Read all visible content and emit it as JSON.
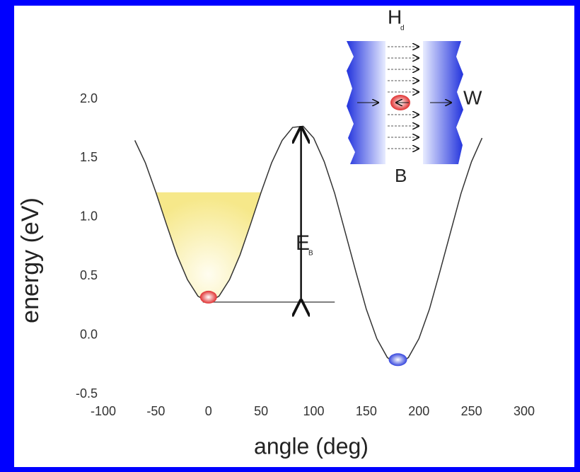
{
  "chart_data": {
    "type": "line",
    "xlabel": "angle (deg)",
    "ylabel": "energy (eV)",
    "x": [
      -70,
      -60,
      -50,
      -40,
      -30,
      -20,
      -10,
      0,
      10,
      20,
      30,
      40,
      50,
      60,
      70,
      80,
      90,
      100,
      110,
      120,
      130,
      140,
      150,
      160,
      170,
      180,
      190,
      200,
      210,
      220,
      230,
      240,
      250,
      260
    ],
    "series": [
      {
        "color": "#333333",
        "values": [
          1.65,
          1.46,
          1.21,
          0.94,
          0.68,
          0.47,
          0.33,
          0.28,
          0.33,
          0.47,
          0.68,
          0.94,
          1.21,
          1.46,
          1.65,
          1.76,
          1.77,
          1.67,
          1.47,
          1.2,
          0.87,
          0.54,
          0.22,
          -0.03,
          -0.19,
          -0.25,
          -0.19,
          -0.03,
          0.22,
          0.54,
          0.87,
          1.2,
          1.47,
          1.67
        ]
      }
    ],
    "xlim": [
      -100,
      300
    ],
    "xticks": [
      -100,
      -50,
      0,
      50,
      100,
      150,
      200,
      250,
      300
    ],
    "ylim": [
      -0.5,
      2.0
    ],
    "yticks": [
      {
        "value": 2.0,
        "label": "2.0"
      },
      1.5,
      {
        "value": 1.0,
        "label": "1.0"
      },
      0.5,
      {
        "value": 0,
        "label": "0.0"
      },
      -0.5
    ],
    "annotations": {
      "barrier": "E",
      "barrier_sub": "B",
      "field": "H",
      "field_sub": "d",
      "wall": "W",
      "inset_b": "B"
    }
  }
}
